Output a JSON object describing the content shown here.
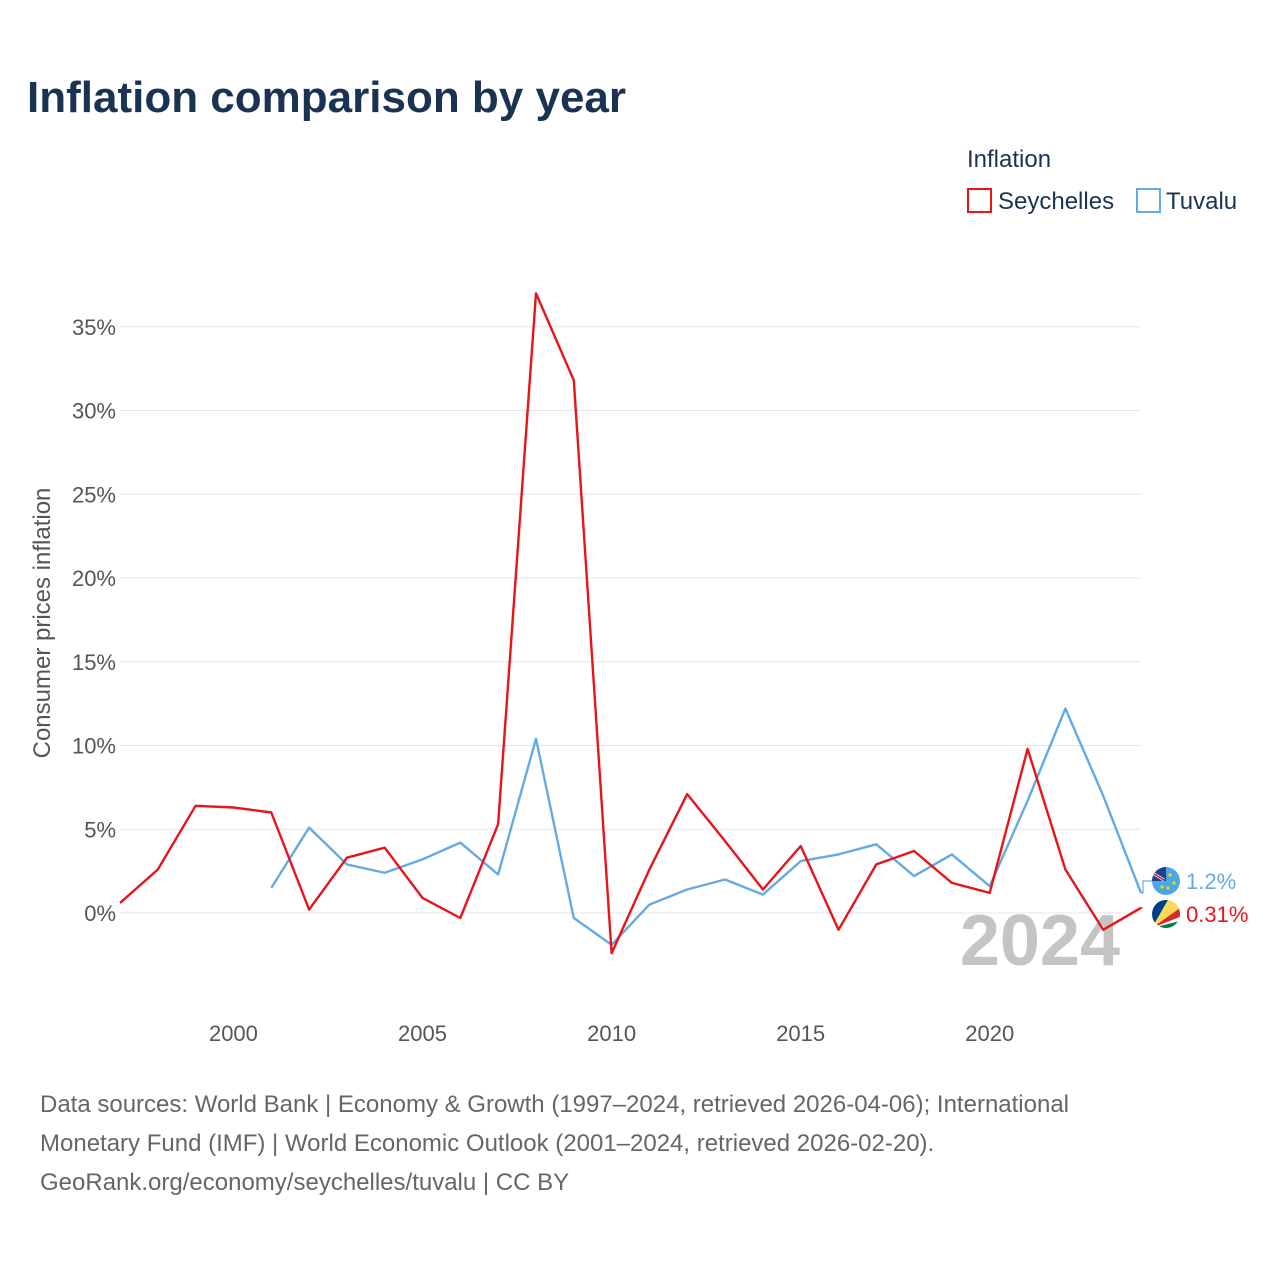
{
  "chart_data": {
    "type": "line",
    "title": "Inflation comparison by year",
    "legend_title": "Inflation",
    "legend_position": "top-right",
    "ylabel": "Consumer prices inflation",
    "xlabel": "",
    "xlim": [
      1997,
      2024
    ],
    "ylim": [
      -5,
      38
    ],
    "x_ticks": [
      2000,
      2005,
      2010,
      2015,
      2020
    ],
    "y_ticks": [
      0,
      5,
      10,
      15,
      20,
      25,
      30,
      35
    ],
    "y_tick_suffix": "%",
    "grid": true,
    "current_year_label": "2024",
    "series": [
      {
        "name": "Seychelles",
        "color": "#e8141a",
        "end_label": "0.31%",
        "flag_icon": "seychelles-flag-icon",
        "x": [
          1997,
          1998,
          1999,
          2000,
          2001,
          2002,
          2003,
          2004,
          2005,
          2006,
          2007,
          2008,
          2009,
          2010,
          2011,
          2012,
          2013,
          2014,
          2015,
          2016,
          2017,
          2018,
          2019,
          2020,
          2021,
          2022,
          2023,
          2024
        ],
        "values": [
          0.6,
          2.6,
          6.4,
          6.3,
          6.0,
          0.2,
          3.3,
          3.9,
          0.9,
          -0.3,
          5.3,
          37.0,
          31.8,
          -2.4,
          2.6,
          7.1,
          4.3,
          1.4,
          4.0,
          -1.0,
          2.9,
          3.7,
          1.8,
          1.2,
          9.8,
          2.6,
          -1.0,
          0.31
        ]
      },
      {
        "name": "Tuvalu",
        "color": "#66aae2",
        "end_label": "1.2%",
        "flag_icon": "tuvalu-flag-icon",
        "x": [
          2001,
          2002,
          2003,
          2004,
          2005,
          2006,
          2007,
          2008,
          2009,
          2010,
          2011,
          2012,
          2013,
          2014,
          2015,
          2016,
          2017,
          2018,
          2019,
          2020,
          2021,
          2022,
          2023,
          2024
        ],
        "values": [
          1.5,
          5.1,
          2.9,
          2.4,
          3.2,
          4.2,
          2.3,
          10.4,
          -0.3,
          -1.9,
          0.5,
          1.4,
          2.0,
          1.1,
          3.1,
          3.5,
          4.1,
          2.2,
          3.5,
          1.6,
          6.7,
          12.2,
          7.0,
          1.2
        ]
      }
    ]
  },
  "footer": {
    "line1": "Data sources: World Bank | Economy & Growth (1997–2024, retrieved 2026-04-06); International",
    "line2": "Monetary Fund (IMF) | World Economic Outlook (2001–2024, retrieved 2026-02-20).",
    "line3": "GeoRank.org/economy/seychelles/tuvalu | CC BY"
  }
}
